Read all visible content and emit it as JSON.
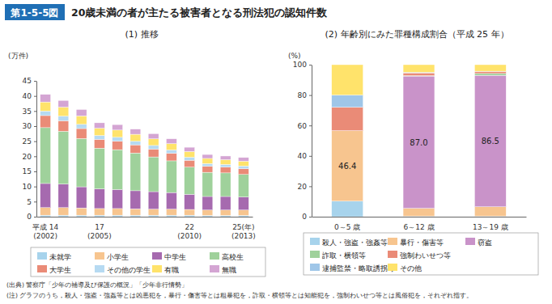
{
  "header": {
    "label": "第1-5-5図",
    "title": "20歳未満の者が主たる被害者となる刑法犯の認知件数"
  },
  "notes": [
    "(出典) 警察庁「少年の補導及び保護の概況」「少年非行情勢」",
    "(注) グラフのうち，殺人・強盗・強姦等とは凶悪犯を，暴行・傷害等とは粗暴犯を，詐取・横領等とは知能犯を，強制わいせつ等とは風俗犯を，それぞれ指す。"
  ],
  "chart_data": [
    {
      "type": "bar",
      "stacked": true,
      "title": "(1) 推移",
      "y_label": "(万件)",
      "categories": [
        "平成 14\n(2002)",
        null,
        null,
        "17\n(2005)",
        null,
        null,
        null,
        null,
        "22\n(2010)",
        null,
        null,
        "25(年)\n(2013)"
      ],
      "ylim": [
        0,
        45
      ],
      "yticks": [
        0,
        5,
        10,
        15,
        20,
        25,
        30,
        35,
        40,
        45
      ],
      "grid": false,
      "legend": "bottom",
      "series": [
        {
          "name": "未就学",
          "color": "#a7d3ec",
          "values": [
            0.5,
            0.5,
            0.5,
            0.5,
            0.5,
            0.5,
            0.5,
            0.5,
            0.5,
            0.4,
            0.4,
            0.4
          ]
        },
        {
          "name": "小学生",
          "color": "#f7c58f",
          "values": [
            2.5,
            2.5,
            2.4,
            2.2,
            2.2,
            2.1,
            2.0,
            2.0,
            1.9,
            1.8,
            1.8,
            1.8
          ]
        },
        {
          "name": "中学生",
          "color": "#a66aaf",
          "values": [
            8.0,
            7.8,
            7.0,
            6.5,
            6.3,
            6.0,
            5.8,
            5.5,
            5.0,
            4.5,
            4.5,
            4.3
          ]
        },
        {
          "name": "高校生",
          "color": "#9fd19b",
          "values": [
            18.5,
            17.5,
            16.0,
            13.5,
            13.2,
            12.5,
            11.5,
            10.5,
            9.0,
            8.0,
            7.8,
            7.5
          ]
        },
        {
          "name": "大学生",
          "color": "#ea8b77",
          "values": [
            4.0,
            3.5,
            3.3,
            2.9,
            2.8,
            2.7,
            2.6,
            2.5,
            2.3,
            2.0,
            1.9,
            1.9
          ]
        },
        {
          "name": "その他の学生",
          "color": "#b6daf2",
          "values": [
            1.5,
            1.5,
            1.4,
            1.3,
            1.3,
            1.2,
            1.2,
            1.1,
            1.0,
            0.9,
            0.9,
            0.9
          ]
        },
        {
          "name": "有職",
          "color": "#ffe36b",
          "values": [
            3.0,
            3.0,
            2.8,
            2.4,
            2.4,
            2.3,
            2.2,
            2.1,
            1.9,
            1.7,
            1.6,
            1.6
          ]
        },
        {
          "name": "無職",
          "color": "#d4a5d3",
          "values": [
            2.5,
            2.2,
            2.1,
            1.8,
            1.8,
            1.7,
            1.7,
            1.6,
            1.4,
            1.3,
            1.2,
            1.2
          ]
        }
      ]
    },
    {
      "type": "bar",
      "stacked": true,
      "title": "(2) 年齢別にみた罪種構成割合（平成 25 年）",
      "y_label": "(%)",
      "categories": [
        "0～5 歳",
        "6～12 歳",
        "13～19 歳"
      ],
      "ylim": [
        0,
        100
      ],
      "yticks": [
        0,
        20,
        40,
        60,
        80,
        100
      ],
      "grid": false,
      "legend": "bottom",
      "data_labels": true,
      "series": [
        {
          "name": "殺人・強盗・強姦等",
          "color": "#a7d3ec",
          "values": [
            10.2,
            0.3,
            0.3
          ],
          "value_labels": [
            null,
            null,
            null
          ]
        },
        {
          "name": "暴行・傷害等",
          "color": "#f7c58f",
          "values": [
            46.4,
            5.2,
            6.2
          ],
          "value_labels": [
            "46.4",
            null,
            null
          ]
        },
        {
          "name": "窃盗",
          "color": "#c993c9",
          "values": [
            0,
            87.0,
            86.5
          ],
          "value_labels": [
            null,
            "87.0",
            "86.5"
          ]
        },
        {
          "name": "詐取・横領等",
          "color": "#9fd19b",
          "values": [
            0,
            0.3,
            1.2
          ],
          "value_labels": [
            null,
            null,
            null
          ]
        },
        {
          "name": "強制わいせつ等",
          "color": "#ea8b77",
          "values": [
            15.4,
            1.8,
            1.4
          ],
          "value_labels": [
            null,
            null,
            null
          ]
        },
        {
          "name": "逮捕監禁・略取誘拐等",
          "color": "#9fc6e8",
          "values": [
            8.0,
            0.4,
            0.1
          ],
          "value_labels": [
            null,
            null,
            null
          ]
        },
        {
          "name": "その他",
          "color": "#ffe36b",
          "values": [
            20.0,
            5.0,
            4.3
          ],
          "value_labels": [
            null,
            null,
            null
          ]
        }
      ]
    }
  ]
}
